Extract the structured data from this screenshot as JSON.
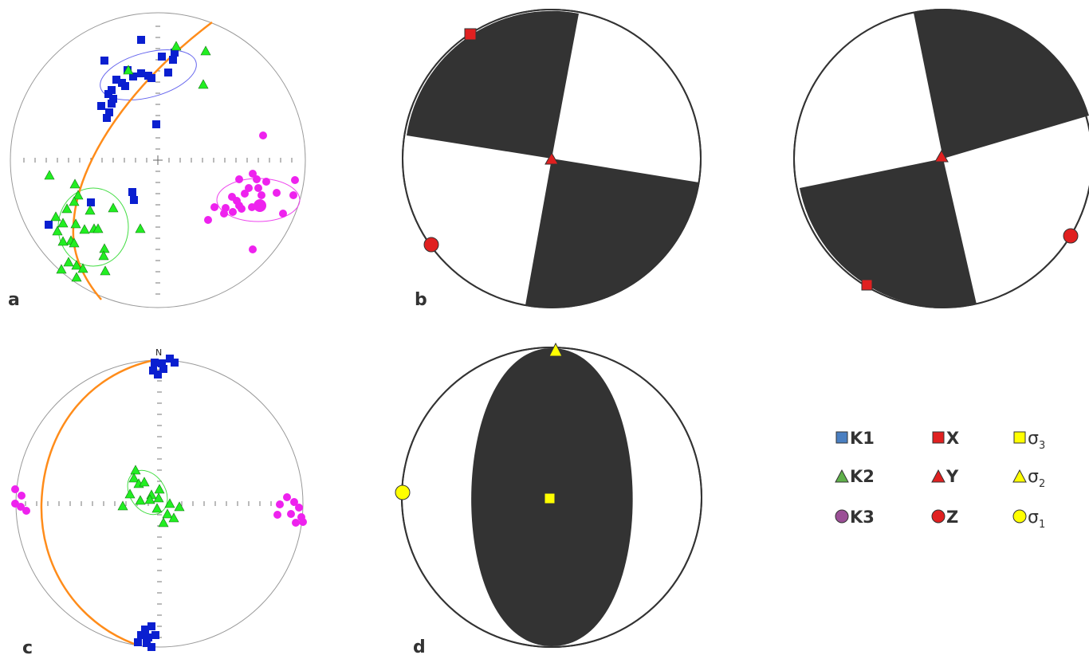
{
  "panels": {
    "a": {
      "label": "a"
    },
    "b": {
      "label": "b"
    },
    "c": {
      "label": "c",
      "north": "N"
    },
    "d": {
      "label": "d"
    }
  },
  "legend": {
    "k1": {
      "label": "K1",
      "color": "#4a7fc1"
    },
    "k2": {
      "label": "K2",
      "color": "#5fb04a"
    },
    "k3": {
      "label": "K3",
      "color": "#9b4f96"
    },
    "x": {
      "label": "X",
      "color": "#e02020"
    },
    "y": {
      "label": "Y",
      "color": "#e02020"
    },
    "z": {
      "label": "Z",
      "color": "#e02020"
    },
    "s3": {
      "label": "σ",
      "sub": "3",
      "color": "#ffff00"
    },
    "s2": {
      "label": "σ",
      "sub": "2",
      "color": "#ffff00"
    },
    "s1": {
      "label": "σ",
      "sub": "1",
      "color": "#ffff00"
    }
  },
  "colors": {
    "k1_marker": "#0a1fd0",
    "k2_marker": "#22ee22",
    "k3_marker": "#ee22ee",
    "great_circle": "#ff8c1a",
    "quadrant_dark": "#333333",
    "marker_red": "#e02020",
    "marker_yellow": "#ffff00"
  }
}
